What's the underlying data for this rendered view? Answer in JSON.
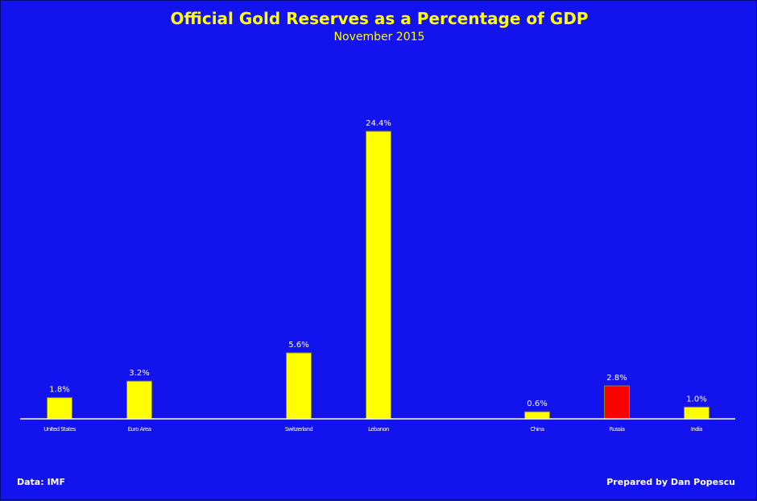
{
  "chart_data": {
    "type": "bar",
    "title": "Official Gold Reserves as a Percentage of GDP",
    "subtitle": "November 2015",
    "categories": [
      "United States",
      "Euro Area",
      "Switzerland",
      "Lebanon",
      "China",
      "Russia",
      "India"
    ],
    "values": [
      1.8,
      3.2,
      5.6,
      24.4,
      0.6,
      2.8,
      1.0
    ],
    "value_labels": [
      "1.8%",
      "3.2%",
      "5.6%",
      "24.4%",
      "0.6%",
      "2.8%",
      "1.0%"
    ],
    "bar_colors": [
      "#ffff00",
      "#ffff00",
      "#ffff00",
      "#ffff00",
      "#ffff00",
      "#ff0000",
      "#ffff00"
    ],
    "xlabel": "",
    "ylabel": "",
    "ylim": [
      0,
      24.4
    ],
    "grid": false,
    "legend": "none"
  },
  "footer": {
    "source": "Data: IMF",
    "credit": "Prepared by Dan Popescu"
  },
  "colors": {
    "background": "#1313ee",
    "text": "#ffffff",
    "title": "#ffff00",
    "highlight": "#ff0000",
    "bar": "#ffff00"
  }
}
